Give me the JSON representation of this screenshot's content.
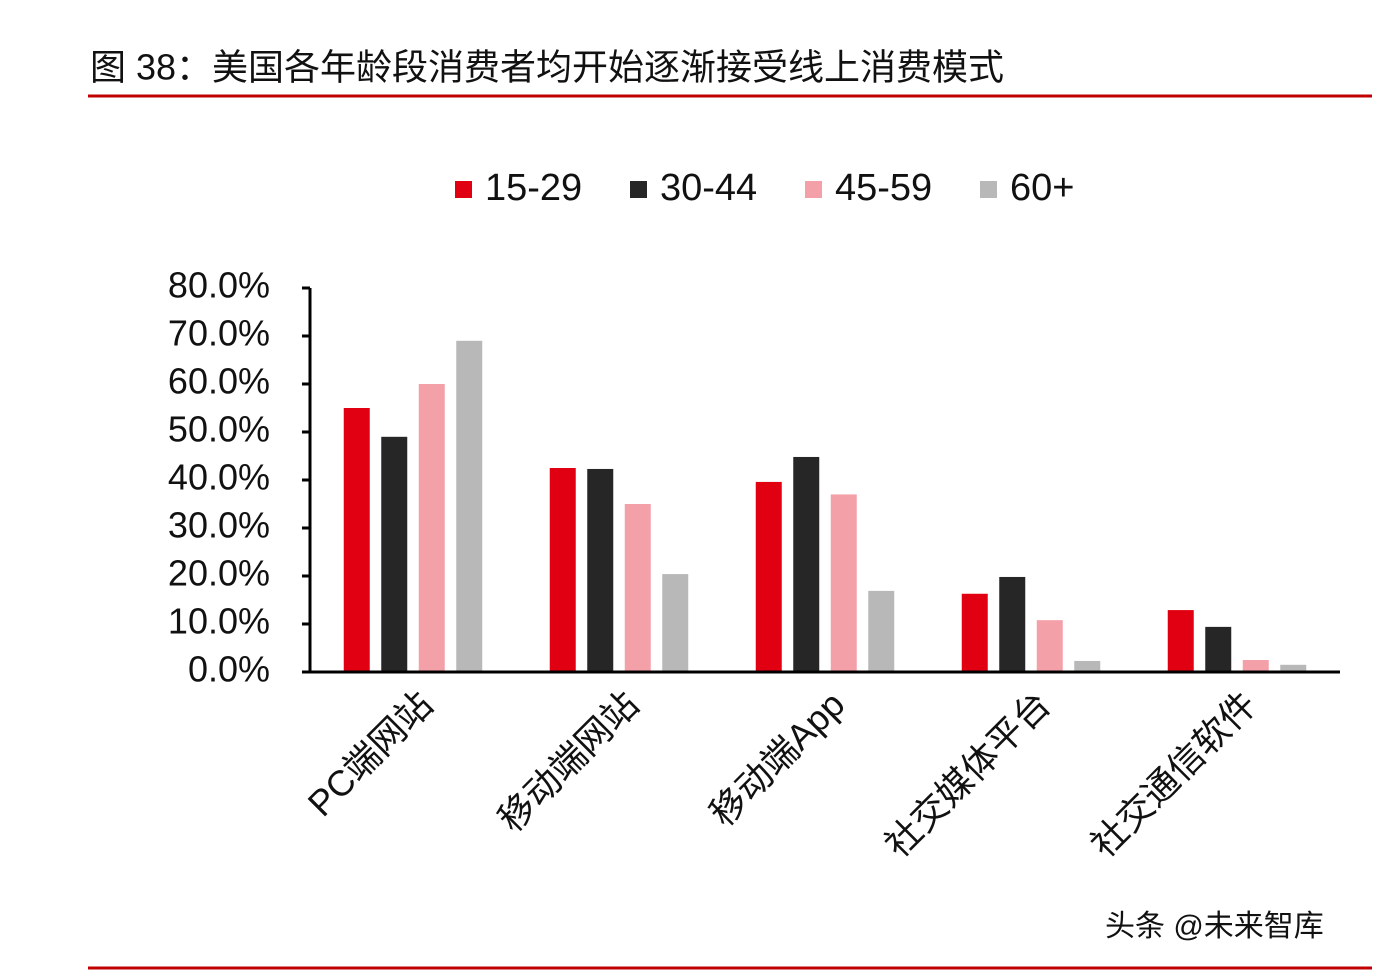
{
  "title": "图 38：美国各年龄段消费者均开始逐渐接受线上消费模式",
  "watermark": "头条 @未来智库",
  "chart_data": {
    "type": "bar",
    "categories": [
      "PC端网站",
      "移动端网站",
      "移动端App",
      "社交媒体平台",
      "社交通信软件"
    ],
    "series": [
      {
        "name": "15-29",
        "color": "#e00012",
        "values": [
          55,
          42.5,
          39.6,
          16.3,
          12.9
        ]
      },
      {
        "name": "30-44",
        "color": "#262626",
        "values": [
          49,
          42.3,
          44.8,
          19.8,
          9.4
        ]
      },
      {
        "name": "45-59",
        "color": "#f4a0a8",
        "values": [
          60,
          35,
          37,
          10.8,
          2.5
        ]
      },
      {
        "name": "60+",
        "color": "#b8b8b8",
        "values": [
          69,
          20.4,
          16.9,
          2.3,
          1.5
        ]
      }
    ],
    "ylim": [
      0,
      80
    ],
    "yticks": [
      {
        "value": 0,
        "label": "0.0%"
      },
      {
        "value": 10,
        "label": "10.0%"
      },
      {
        "value": 20,
        "label": "20.0%"
      },
      {
        "value": 30,
        "label": "30.0%"
      },
      {
        "value": 40,
        "label": "40.0%"
      },
      {
        "value": 50,
        "label": "50.0%"
      },
      {
        "value": 60,
        "label": "60.0%"
      },
      {
        "value": 70,
        "label": "70.0%"
      },
      {
        "value": 80,
        "label": "80.0%"
      }
    ],
    "legend": "top"
  }
}
